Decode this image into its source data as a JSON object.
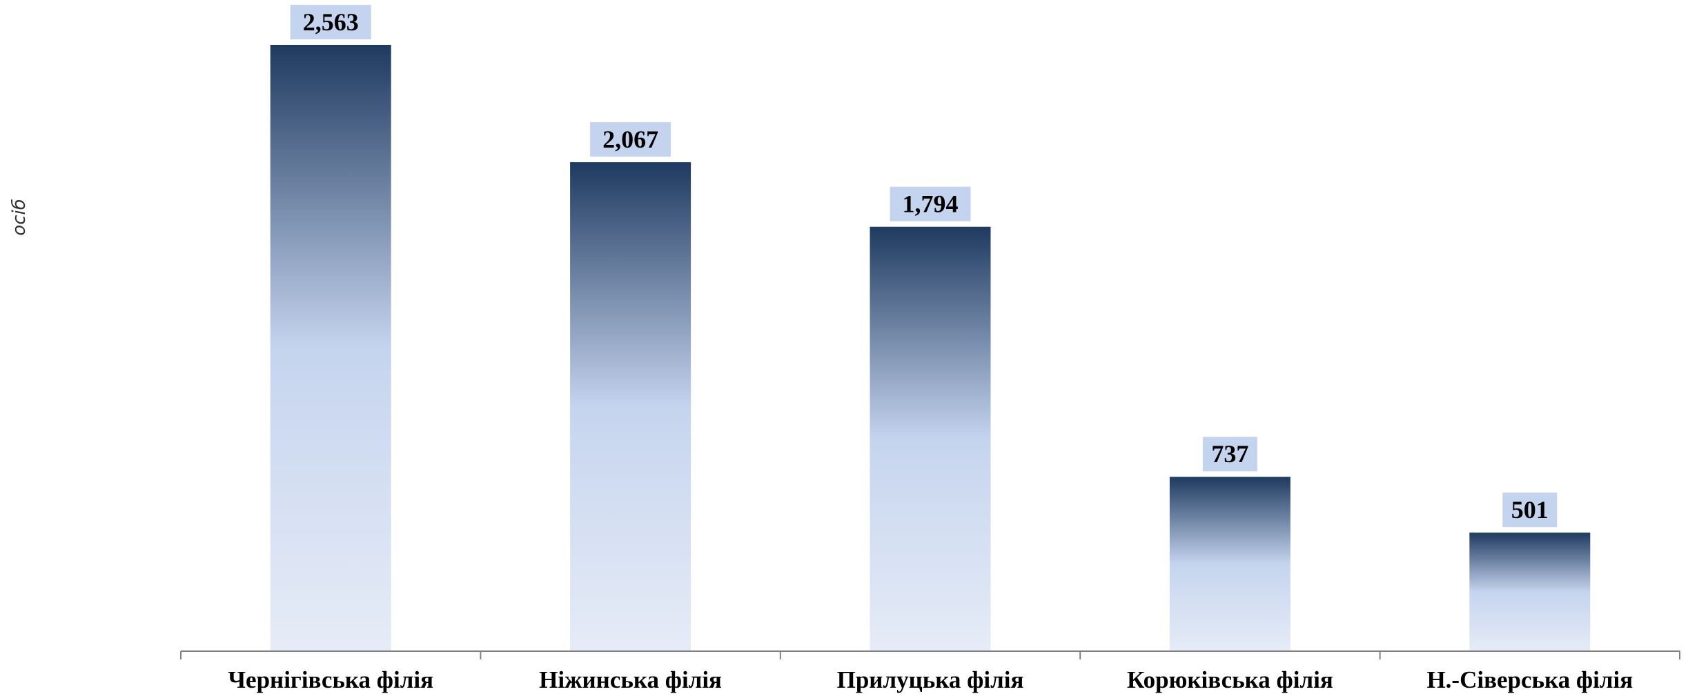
{
  "chart_data": {
    "type": "bar",
    "title": "",
    "xlabel": "",
    "ylabel": "осіб",
    "categories": [
      "Чернігівська  філія",
      "Ніжинська філія",
      "Прилуцька філія",
      "Корюківська філія",
      "Н.-Сіверська філія"
    ],
    "values": [
      2563,
      2067,
      1794,
      737,
      501
    ],
    "value_labels": [
      "2,563",
      "2,067",
      "1,794",
      "737",
      "501"
    ],
    "ylim": [
      0,
      2563
    ],
    "grid": false,
    "legend": "none",
    "colors": {
      "bar_top": "#1f3a60",
      "bar_mid": "#c5d4ee",
      "bar_bottom": "#e6ecf7",
      "label_bg": "#c5d4ee",
      "axis": "#808080"
    }
  }
}
